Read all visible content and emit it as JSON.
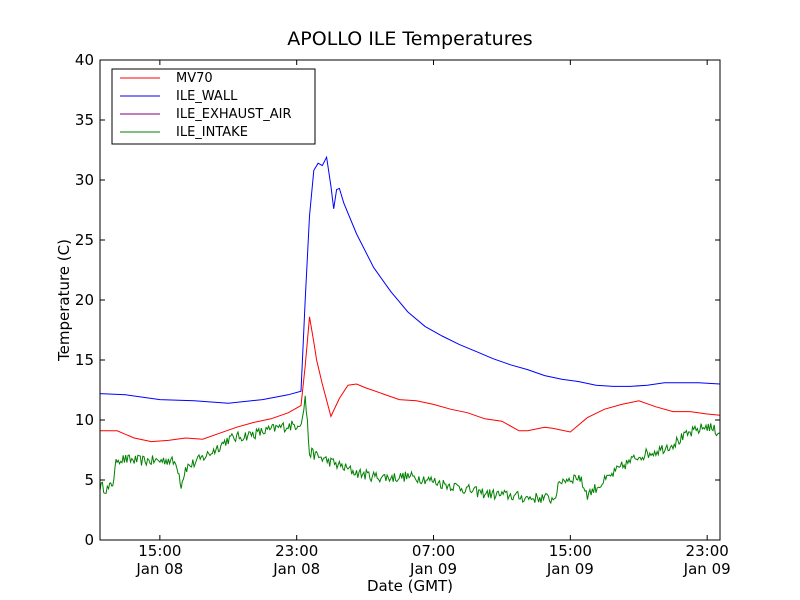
{
  "chart_data": {
    "type": "line",
    "title": "APOLLO ILE Temperatures",
    "xlabel": "Date (GMT)",
    "ylabel": "Temperature (C)",
    "ylim": [
      0,
      40
    ],
    "yticks": [
      0,
      5,
      10,
      15,
      20,
      25,
      30,
      35,
      40
    ],
    "xlim": [
      "2009-01-08T11:30",
      "2009-01-09T23:45"
    ],
    "xticks": [
      {
        "t": "2009-01-08T15:00",
        "time": "15:00",
        "date": "Jan 08"
      },
      {
        "t": "2009-01-08T23:00",
        "time": "23:00",
        "date": "Jan 08"
      },
      {
        "t": "2009-01-09T07:00",
        "time": "07:00",
        "date": "Jan 09"
      },
      {
        "t": "2009-01-09T15:00",
        "time": "15:00",
        "date": "Jan 09"
      },
      {
        "t": "2009-01-09T23:00",
        "time": "23:00",
        "date": "Jan 09"
      }
    ],
    "legend_position": "top-left",
    "grid": false,
    "series": [
      {
        "name": "MV70",
        "color": "#ff0000",
        "x": [
          "2009-01-08T11:30",
          "2009-01-08T12:30",
          "2009-01-08T13:30",
          "2009-01-08T14:30",
          "2009-01-08T15:30",
          "2009-01-08T16:30",
          "2009-01-08T17:30",
          "2009-01-08T18:30",
          "2009-01-08T19:30",
          "2009-01-08T20:30",
          "2009-01-08T21:30",
          "2009-01-08T22:30",
          "2009-01-08T23:15",
          "2009-01-08T23:30",
          "2009-01-08T23:45",
          "2009-01-09T00:00",
          "2009-01-09T00:10",
          "2009-01-09T00:30",
          "2009-01-09T01:00",
          "2009-01-09T01:30",
          "2009-01-09T02:00",
          "2009-01-09T02:30",
          "2009-01-09T03:00",
          "2009-01-09T04:00",
          "2009-01-09T05:00",
          "2009-01-09T06:00",
          "2009-01-09T07:00",
          "2009-01-09T08:00",
          "2009-01-09T09:00",
          "2009-01-09T10:00",
          "2009-01-09T11:00",
          "2009-01-09T12:00",
          "2009-01-09T12:30",
          "2009-01-09T13:30",
          "2009-01-09T14:00",
          "2009-01-09T15:00",
          "2009-01-09T16:00",
          "2009-01-09T17:00",
          "2009-01-09T18:00",
          "2009-01-09T19:00",
          "2009-01-09T20:00",
          "2009-01-09T21:00",
          "2009-01-09T22:00",
          "2009-01-09T23:00",
          "2009-01-09T23:45"
        ],
        "y": [
          9.1,
          9.1,
          8.5,
          8.2,
          8.3,
          8.5,
          8.4,
          8.9,
          9.4,
          9.8,
          10.1,
          10.6,
          11.2,
          14.5,
          18.6,
          16.5,
          15.0,
          13.0,
          10.3,
          11.8,
          12.9,
          13.0,
          12.7,
          12.2,
          11.7,
          11.6,
          11.3,
          10.9,
          10.6,
          10.1,
          9.9,
          9.1,
          9.1,
          9.4,
          9.3,
          9.0,
          10.2,
          10.9,
          11.3,
          11.6,
          11.1,
          10.7,
          10.7,
          10.5,
          10.4
        ]
      },
      {
        "name": "ILE_WALL",
        "color": "#0000ff",
        "x": [
          "2009-01-08T11:30",
          "2009-01-08T13:00",
          "2009-01-08T15:00",
          "2009-01-08T17:00",
          "2009-01-08T19:00",
          "2009-01-08T21:00",
          "2009-01-08T22:30",
          "2009-01-08T23:15",
          "2009-01-08T23:30",
          "2009-01-08T23:45",
          "2009-01-09T00:00",
          "2009-01-09T00:15",
          "2009-01-09T00:30",
          "2009-01-09T00:45",
          "2009-01-09T01:00",
          "2009-01-09T01:10",
          "2009-01-09T01:20",
          "2009-01-09T01:30",
          "2009-01-09T01:45",
          "2009-01-09T02:30",
          "2009-01-09T03:30",
          "2009-01-09T04:30",
          "2009-01-09T05:30",
          "2009-01-09T06:30",
          "2009-01-09T07:30",
          "2009-01-09T08:30",
          "2009-01-09T09:30",
          "2009-01-09T10:30",
          "2009-01-09T11:30",
          "2009-01-09T12:30",
          "2009-01-09T13:30",
          "2009-01-09T14:30",
          "2009-01-09T15:30",
          "2009-01-09T16:30",
          "2009-01-09T17:30",
          "2009-01-09T18:30",
          "2009-01-09T19:30",
          "2009-01-09T20:30",
          "2009-01-09T21:30",
          "2009-01-09T22:30",
          "2009-01-09T23:45"
        ],
        "y": [
          12.2,
          12.1,
          11.7,
          11.6,
          11.4,
          11.7,
          12.1,
          12.4,
          20.0,
          27.0,
          30.8,
          31.4,
          31.2,
          31.9,
          29.5,
          27.6,
          29.2,
          29.3,
          28.1,
          25.5,
          22.7,
          20.7,
          19.0,
          17.8,
          17.0,
          16.3,
          15.7,
          15.1,
          14.6,
          14.2,
          13.7,
          13.4,
          13.2,
          12.9,
          12.8,
          12.8,
          12.9,
          13.1,
          13.1,
          13.1,
          13.0
        ]
      },
      {
        "name": "ILE_EXHAUST_AIR",
        "color": "#800080",
        "x": [],
        "y": []
      },
      {
        "name": "ILE_INTAKE",
        "color": "#008000",
        "x": [
          "2009-01-08T11:30",
          "2009-01-08T12:00",
          "2009-01-08T12:15",
          "2009-01-08T12:30",
          "2009-01-08T13:00",
          "2009-01-08T14:00",
          "2009-01-08T15:00",
          "2009-01-08T15:30",
          "2009-01-08T16:00",
          "2009-01-08T16:15",
          "2009-01-08T16:30",
          "2009-01-08T17:00",
          "2009-01-08T18:00",
          "2009-01-08T19:00",
          "2009-01-08T20:00",
          "2009-01-08T21:00",
          "2009-01-08T22:00",
          "2009-01-08T23:00",
          "2009-01-08T23:20",
          "2009-01-08T23:30",
          "2009-01-08T23:45",
          "2009-01-09T00:30",
          "2009-01-09T01:30",
          "2009-01-09T02:30",
          "2009-01-09T03:30",
          "2009-01-09T04:30",
          "2009-01-09T05:30",
          "2009-01-09T06:30",
          "2009-01-09T07:30",
          "2009-01-09T08:30",
          "2009-01-09T09:30",
          "2009-01-09T10:30",
          "2009-01-09T11:30",
          "2009-01-09T12:30",
          "2009-01-09T13:30",
          "2009-01-09T14:00",
          "2009-01-09T14:30",
          "2009-01-09T15:00",
          "2009-01-09T15:30",
          "2009-01-09T16:00",
          "2009-01-09T17:00",
          "2009-01-09T18:00",
          "2009-01-09T19:00",
          "2009-01-09T20:00",
          "2009-01-09T21:00",
          "2009-01-09T22:00",
          "2009-01-09T23:00",
          "2009-01-09T23:45"
        ],
        "y": [
          4.5,
          4.2,
          4.8,
          6.8,
          6.7,
          6.6,
          6.6,
          6.7,
          6.3,
          4.6,
          6.0,
          6.4,
          7.3,
          8.4,
          8.7,
          9.0,
          9.4,
          9.6,
          10.0,
          12.0,
          7.3,
          6.8,
          6.2,
          5.6,
          5.3,
          5.2,
          5.3,
          5.1,
          4.7,
          4.4,
          4.0,
          3.8,
          3.7,
          3.5,
          3.5,
          3.4,
          5.0,
          5.1,
          5.3,
          3.8,
          4.9,
          6.1,
          7.0,
          7.4,
          8.0,
          8.9,
          9.5,
          8.9
        ]
      }
    ]
  }
}
